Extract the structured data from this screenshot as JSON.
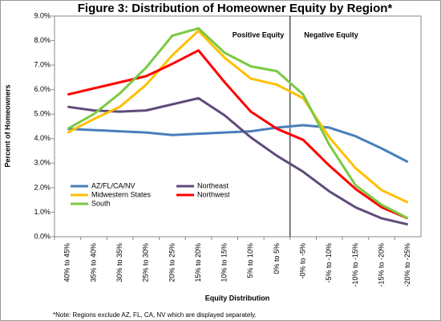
{
  "chart_data": {
    "type": "line",
    "title": "Figure 3: Distribution of Homeowner Equity by Region*",
    "y_label": "Percent of Homeowners",
    "x_label": "Equity Distribution",
    "note": "*Note: Regions exclude AZ, FL, CA, NV which are displayed separately.",
    "annotations": [
      "Positive Equity",
      "Negative Equity"
    ],
    "categories": [
      "40% to 45%",
      "35% to 40%",
      "30% to 35%",
      "25% to 30%",
      "20% to 25%",
      "15% to 20%",
      "10% to 15%",
      "5% to 10%",
      "0% to 5%",
      "-0% to -5%",
      "-5% to -10%",
      "-10% to -15%",
      "-15% to -20%",
      "-20% to -25%"
    ],
    "series": [
      {
        "name": "AZ/FL/CA/NV",
        "color": "#4a7ebb",
        "values": [
          4.4,
          4.35,
          4.3,
          4.25,
          4.15,
          4.2,
          4.25,
          4.3,
          4.45,
          4.55,
          4.45,
          4.1,
          3.6,
          3.05
        ]
      },
      {
        "name": "Northeast",
        "color": "#604a7b",
        "values": [
          5.3,
          5.15,
          5.1,
          5.15,
          5.4,
          5.65,
          4.95,
          4.05,
          3.3,
          2.65,
          1.85,
          1.2,
          0.75,
          0.5
        ]
      },
      {
        "name": "Midwestern States",
        "color": "#ffc000",
        "values": [
          4.25,
          4.8,
          5.3,
          6.2,
          7.4,
          8.4,
          7.3,
          6.45,
          6.2,
          5.65,
          4.05,
          2.8,
          1.9,
          1.4
        ]
      },
      {
        "name": "Northwest",
        "color": "#ff0000",
        "values": [
          5.8,
          6.05,
          6.3,
          6.55,
          7.05,
          7.6,
          6.3,
          5.1,
          4.4,
          3.95,
          2.9,
          1.95,
          1.2,
          0.75
        ]
      },
      {
        "name": "South",
        "color": "#7ac943",
        "values": [
          4.4,
          5.0,
          5.85,
          6.9,
          8.2,
          8.5,
          7.5,
          6.95,
          6.75,
          5.8,
          3.75,
          2.1,
          1.3,
          0.75
        ]
      }
    ],
    "ylim": [
      0,
      9
    ],
    "yticks": [
      {
        "value": 0,
        "label": "0.0%"
      },
      {
        "value": 1,
        "label": "1.0%"
      },
      {
        "value": 2,
        "label": "2.0%"
      },
      {
        "value": 3,
        "label": "3.0%"
      },
      {
        "value": 4,
        "label": "4.0%"
      },
      {
        "value": 5,
        "label": "5.0%"
      },
      {
        "value": 6,
        "label": "6.0%"
      },
      {
        "value": 7,
        "label": "7.0%"
      },
      {
        "value": 8,
        "label": "8.0%"
      },
      {
        "value": 9,
        "label": "9.0%"
      }
    ],
    "grid": false,
    "legend": "lower left"
  }
}
